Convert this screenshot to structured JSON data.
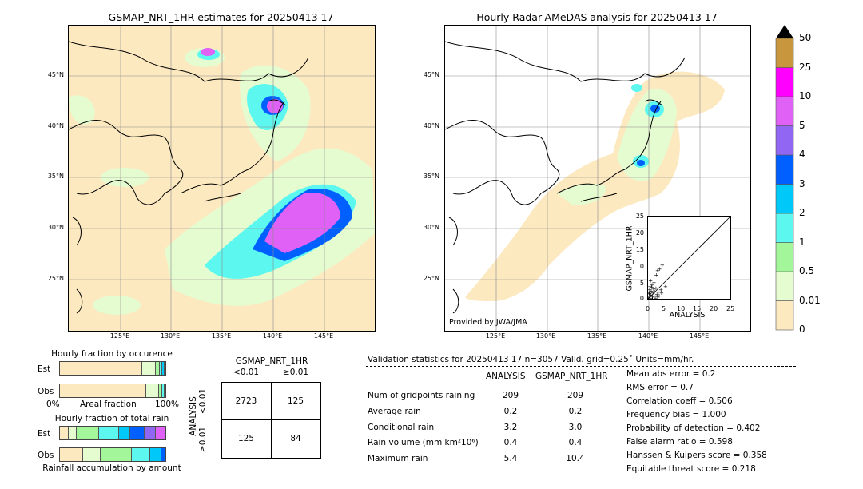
{
  "colorbar": {
    "levels": [
      "0",
      "0.01",
      "0.5",
      "1",
      "2",
      "3",
      "4",
      "5",
      "10",
      "25",
      "50"
    ],
    "colors": [
      "#fde9c0",
      "#e5fbd0",
      "#a3f79a",
      "#5cf8f0",
      "#00c8f8",
      "#0060ff",
      "#9166f2",
      "#e061f5",
      "#ff00ff",
      "#c8963c"
    ]
  },
  "left_map": {
    "title": "GSMAP_NRT_1HR estimates for 20250413 17",
    "lat_ticks": [
      "45°N",
      "40°N",
      "35°N",
      "30°N",
      "25°N"
    ],
    "lon_ticks": [
      "125°E",
      "130°E",
      "135°E",
      "140°E",
      "145°E"
    ]
  },
  "right_map": {
    "title": "Hourly Radar-AMeDAS analysis for 20250413 17",
    "lat_ticks": [
      "45°N",
      "40°N",
      "35°N",
      "30°N",
      "25°N"
    ],
    "lon_ticks": [
      "125°E",
      "130°E",
      "135°E",
      "140°E",
      "145°E"
    ],
    "credit": "Provided by JWA/JMA"
  },
  "chart_data": {
    "type": "scatter",
    "xlabel": "ANALYSIS",
    "ylabel": "GSMAP_NRT_1HR",
    "xlim": [
      0,
      25
    ],
    "ylim": [
      0,
      25
    ],
    "ticks": [
      "0",
      "5",
      "10",
      "15",
      "20",
      "25"
    ],
    "points": [
      [
        0.2,
        0.1
      ],
      [
        0.3,
        0.6
      ],
      [
        0.5,
        1.2
      ],
      [
        0.4,
        2.1
      ],
      [
        0.6,
        3.0
      ],
      [
        0.8,
        0.5
      ],
      [
        1.0,
        1.5
      ],
      [
        1.1,
        2.6
      ],
      [
        1.2,
        3.8
      ],
      [
        1.3,
        4.5
      ],
      [
        0.7,
        4.0
      ],
      [
        1.5,
        0.8
      ],
      [
        1.6,
        2.0
      ],
      [
        1.8,
        3.2
      ],
      [
        2.0,
        1.1
      ],
      [
        2.1,
        2.4
      ],
      [
        2.3,
        0.4
      ],
      [
        2.5,
        3.5
      ],
      [
        2.8,
        1.6
      ],
      [
        3.0,
        0.9
      ],
      [
        3.2,
        2.3
      ],
      [
        3.5,
        1.2
      ],
      [
        4.0,
        3.0
      ],
      [
        4.2,
        2.0
      ],
      [
        2.6,
        7.5
      ],
      [
        3.0,
        8.8
      ],
      [
        3.6,
        9.3
      ],
      [
        4.4,
        10.4
      ],
      [
        1.9,
        5.2
      ],
      [
        0.9,
        5.8
      ],
      [
        5.4,
        4.0
      ],
      [
        0.3,
        0.3
      ],
      [
        1.4,
        0.2
      ],
      [
        0.6,
        1.8
      ]
    ]
  },
  "occurrence": {
    "title": "Hourly fraction by occurence",
    "rows": [
      "Est",
      "Obs"
    ],
    "axis_left": "0%",
    "axis_mid": "Areal fraction",
    "axis_right": "100%",
    "est_fracs": [
      0.78,
      0.13,
      0.04,
      0.02,
      0.02,
      0.01
    ],
    "obs_fracs": [
      0.82,
      0.12,
      0.03,
      0.02,
      0.01
    ]
  },
  "total_rain": {
    "title": "Hourly fraction of total rain",
    "rows": [
      "Est",
      "Obs"
    ],
    "axis_label": "Rainfall accumulation by amount",
    "est_fracs": [
      0.08,
      0.08,
      0.21,
      0.19,
      0.11,
      0.13,
      0.11,
      0.09
    ],
    "obs_fracs": [
      0.22,
      0.17,
      0.29,
      0.18,
      0.1,
      0.04
    ]
  },
  "contingency": {
    "col_title": "GSMAP_NRT_1HR",
    "col_lt": "<0.01",
    "col_ge": "≥0.01",
    "row_title": "ANALYSIS",
    "row_lt": "<0.01",
    "row_ge": "≥0.01",
    "a": "2723",
    "b": "125",
    "c": "125",
    "d": "84"
  },
  "validation": {
    "header": "Validation statistics for 20250413 17  n=3057 Valid. grid=0.25˚ Units=mm/hr.",
    "col1": "ANALYSIS",
    "col2": "GSMAP_NRT_1HR",
    "rows": [
      {
        "label": "Num of gridpoints raining",
        "a": "209",
        "b": "209"
      },
      {
        "label": "Average rain",
        "a": "0.2",
        "b": "0.2"
      },
      {
        "label": "Conditional rain",
        "a": "3.2",
        "b": "3.0"
      },
      {
        "label": "Rain volume (mm km²10⁶)",
        "a": "0.4",
        "b": "0.4"
      },
      {
        "label": "Maximum rain",
        "a": "5.4",
        "b": "10.4"
      }
    ],
    "scores": [
      "Mean abs error =    0.2",
      "RMS error =    0.7",
      "Correlation coeff =  0.506",
      "Frequency bias =  1.000",
      "Probability of detection =  0.402",
      "False alarm ratio =  0.598",
      "Hanssen & Kuipers score =  0.358",
      "Equitable threat score =  0.218"
    ]
  }
}
